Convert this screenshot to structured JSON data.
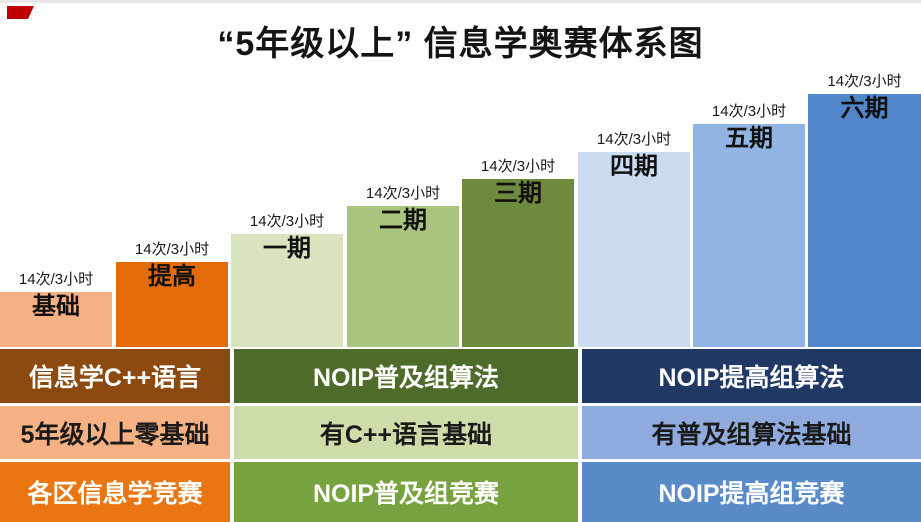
{
  "title": "“5年级以上” 信息学奥赛体系图",
  "corner_mark": {
    "color": "#c00000"
  },
  "columns": [
    {
      "schedule": "14次/3小时",
      "name": "基础",
      "color": "#F5B183"
    },
    {
      "schedule": "14次/3小时",
      "name": "提高",
      "color": "#E36C09"
    },
    {
      "schedule": "14次/3小时",
      "name": "一期",
      "color": "#D7E4BD"
    },
    {
      "schedule": "14次/3小时",
      "name": "二期",
      "color": "#A9C47F"
    },
    {
      "schedule": "14次/3小时",
      "name": "三期",
      "color": "#6E8B3D"
    },
    {
      "schedule": "14次/3小时",
      "name": "四期",
      "color": "#CCDCF0"
    },
    {
      "schedule": "14次/3小时",
      "name": "五期",
      "color": "#92B4E2"
    },
    {
      "schedule": "14次/3小时",
      "name": "六期",
      "color": "#5187C9"
    }
  ],
  "table": {
    "rows": [
      {
        "text_color": "#FFFFFF",
        "cells": [
          {
            "label": "信息学C++语言",
            "color": "#8C4A10"
          },
          {
            "label": "NOIP普及组算法",
            "color": "#4E6B2A"
          },
          {
            "label": "NOIP提高组算法",
            "color": "#1F3864"
          }
        ]
      },
      {
        "text_color": "#1A1A1A",
        "cells": [
          {
            "label": "5年级以上零基础",
            "color": "#F5B183"
          },
          {
            "label": "有C++语言基础",
            "color": "#CCDDAA"
          },
          {
            "label": "有普及组算法基础",
            "color": "#8FAADC"
          }
        ]
      },
      {
        "text_color": "#FFFFFF",
        "cells": [
          {
            "label": "各区信息学竞赛",
            "color": "#E97612"
          },
          {
            "label": "NOIP普及组竞赛",
            "color": "#76A23F"
          },
          {
            "label": "NOIP提高组竞赛",
            "color": "#5A8BC9"
          }
        ]
      }
    ]
  }
}
